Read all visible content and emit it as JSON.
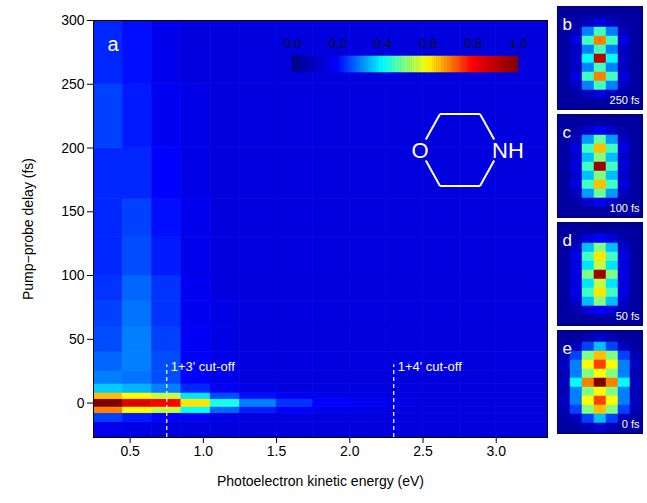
{
  "chart_data": {
    "type": "heatmap",
    "panel_label": "a",
    "xlabel": "Photoelectron kinetic energy (eV)",
    "ylabel": "Pump−probe delay (fs)",
    "xlim": [
      0.25,
      3.35
    ],
    "ylim": [
      -27,
      300
    ],
    "xticks": [
      0.5,
      {
        "value": 1,
        "label": "1.0"
      },
      1.5,
      {
        "value": 2,
        "label": "2.0"
      },
      2.5,
      {
        "value": 3,
        "label": "3.0"
      }
    ],
    "yticks": [
      0,
      50,
      100,
      150,
      200,
      250,
      300
    ],
    "x_edges": [
      0.25,
      0.45,
      0.65,
      0.85,
      1.05,
      1.25,
      1.5,
      1.75,
      2.0,
      2.25,
      2.5,
      2.75,
      3.0,
      3.35
    ],
    "y_edges": [
      -27,
      -15,
      -8,
      -3,
      3,
      8,
      15,
      25,
      40,
      60,
      80,
      100,
      130,
      160,
      200,
      250,
      300
    ],
    "cells": [
      [
        0.17,
        0.16,
        0.15,
        0.15,
        0.15,
        0.15,
        0.15,
        0.15,
        0.15,
        0.15,
        0.15,
        0.15,
        0.15
      ],
      [
        0.25,
        0.22,
        0.2,
        0.18,
        0.16,
        0.15,
        0.15,
        0.15,
        0.15,
        0.15,
        0.15,
        0.15,
        0.15
      ],
      [
        0.7,
        0.6,
        0.55,
        0.4,
        0.28,
        0.22,
        0.19,
        0.17,
        0.16,
        0.15,
        0.15,
        0.15,
        0.15
      ],
      [
        1.0,
        0.85,
        0.8,
        0.62,
        0.42,
        0.3,
        0.24,
        0.2,
        0.18,
        0.16,
        0.15,
        0.15,
        0.15
      ],
      [
        0.65,
        0.6,
        0.55,
        0.38,
        0.26,
        0.21,
        0.18,
        0.17,
        0.16,
        0.15,
        0.15,
        0.15,
        0.15
      ],
      [
        0.36,
        0.34,
        0.3,
        0.23,
        0.18,
        0.16,
        0.15,
        0.15,
        0.15,
        0.15,
        0.15,
        0.15,
        0.15
      ],
      [
        0.3,
        0.29,
        0.26,
        0.2,
        0.17,
        0.15,
        0.15,
        0.15,
        0.15,
        0.15,
        0.15,
        0.15,
        0.15
      ],
      [
        0.28,
        0.3,
        0.26,
        0.2,
        0.16,
        0.15,
        0.15,
        0.15,
        0.15,
        0.15,
        0.15,
        0.15,
        0.15
      ],
      [
        0.26,
        0.3,
        0.25,
        0.19,
        0.16,
        0.15,
        0.15,
        0.15,
        0.15,
        0.15,
        0.15,
        0.15,
        0.15
      ],
      [
        0.25,
        0.29,
        0.24,
        0.18,
        0.16,
        0.15,
        0.15,
        0.15,
        0.15,
        0.15,
        0.15,
        0.15,
        0.15
      ],
      [
        0.24,
        0.28,
        0.24,
        0.18,
        0.15,
        0.15,
        0.15,
        0.15,
        0.15,
        0.15,
        0.15,
        0.15,
        0.15
      ],
      [
        0.23,
        0.26,
        0.22,
        0.17,
        0.15,
        0.15,
        0.15,
        0.15,
        0.15,
        0.15,
        0.15,
        0.15,
        0.15
      ],
      [
        0.23,
        0.25,
        0.21,
        0.17,
        0.15,
        0.15,
        0.15,
        0.15,
        0.15,
        0.15,
        0.15,
        0.15,
        0.15
      ],
      [
        0.23,
        0.23,
        0.2,
        0.16,
        0.15,
        0.15,
        0.15,
        0.15,
        0.15,
        0.15,
        0.15,
        0.15,
        0.15
      ],
      [
        0.25,
        0.22,
        0.18,
        0.16,
        0.15,
        0.15,
        0.15,
        0.15,
        0.15,
        0.15,
        0.15,
        0.15,
        0.15
      ],
      [
        0.23,
        0.21,
        0.17,
        0.15,
        0.15,
        0.15,
        0.15,
        0.15,
        0.15,
        0.15,
        0.15,
        0.15,
        0.15
      ]
    ],
    "colorbar": {
      "range": [
        0,
        1
      ],
      "ticks": [
        {
          "value": 0,
          "label": "0.0"
        },
        0.2,
        0.4,
        0.6,
        0.8,
        {
          "value": 1,
          "label": "1.0"
        }
      ]
    },
    "annotations": [
      {
        "label": "1+3' cut-off",
        "energy": 0.75,
        "y_top": 30
      },
      {
        "label": "1+4' cut-off",
        "energy": 2.3,
        "y_top": 30
      }
    ],
    "structure_labels": [
      "O",
      "NH"
    ],
    "images": [
      {
        "panel_label": "b",
        "label": "250 fs",
        "cells": [
          [
            0.05,
            0.05,
            0.05,
            0.05,
            0.05,
            0.05,
            0.05
          ],
          [
            0.05,
            0.06,
            0.1,
            0.15,
            0.1,
            0.06,
            0.05
          ],
          [
            0.05,
            0.1,
            0.3,
            0.45,
            0.3,
            0.1,
            0.05
          ],
          [
            0.05,
            0.15,
            0.45,
            0.7,
            0.45,
            0.15,
            0.05
          ],
          [
            0.05,
            0.1,
            0.3,
            0.45,
            0.3,
            0.1,
            0.05
          ],
          [
            0.05,
            0.12,
            0.4,
            0.9,
            0.4,
            0.12,
            0.05
          ],
          [
            0.05,
            0.1,
            0.3,
            0.45,
            0.3,
            0.1,
            0.05
          ],
          [
            0.05,
            0.15,
            0.45,
            0.7,
            0.45,
            0.15,
            0.05
          ],
          [
            0.05,
            0.1,
            0.3,
            0.45,
            0.3,
            0.1,
            0.05
          ],
          [
            0.05,
            0.06,
            0.1,
            0.15,
            0.1,
            0.06,
            0.05
          ],
          [
            0.05,
            0.05,
            0.05,
            0.05,
            0.05,
            0.05,
            0.05
          ]
        ]
      },
      {
        "panel_label": "c",
        "label": "100 fs",
        "cells": [
          [
            0.05,
            0.05,
            0.05,
            0.05,
            0.05,
            0.05,
            0.05
          ],
          [
            0.05,
            0.06,
            0.12,
            0.18,
            0.12,
            0.06,
            0.05
          ],
          [
            0.05,
            0.1,
            0.32,
            0.48,
            0.32,
            0.1,
            0.05
          ],
          [
            0.05,
            0.15,
            0.45,
            0.65,
            0.45,
            0.15,
            0.05
          ],
          [
            0.05,
            0.12,
            0.35,
            0.5,
            0.35,
            0.12,
            0.05
          ],
          [
            0.05,
            0.14,
            0.45,
            0.95,
            0.45,
            0.14,
            0.05
          ],
          [
            0.05,
            0.12,
            0.35,
            0.5,
            0.35,
            0.12,
            0.05
          ],
          [
            0.05,
            0.15,
            0.45,
            0.65,
            0.45,
            0.15,
            0.05
          ],
          [
            0.05,
            0.1,
            0.32,
            0.48,
            0.32,
            0.1,
            0.05
          ],
          [
            0.05,
            0.06,
            0.12,
            0.18,
            0.12,
            0.06,
            0.05
          ],
          [
            0.05,
            0.05,
            0.05,
            0.05,
            0.05,
            0.05,
            0.05
          ]
        ]
      },
      {
        "panel_label": "d",
        "label": "50 fs",
        "cells": [
          [
            0.05,
            0.05,
            0.05,
            0.05,
            0.05,
            0.05,
            0.05
          ],
          [
            0.05,
            0.07,
            0.14,
            0.2,
            0.14,
            0.07,
            0.05
          ],
          [
            0.05,
            0.12,
            0.35,
            0.5,
            0.35,
            0.12,
            0.05
          ],
          [
            0.05,
            0.16,
            0.45,
            0.62,
            0.45,
            0.16,
            0.05
          ],
          [
            0.05,
            0.14,
            0.38,
            0.55,
            0.38,
            0.14,
            0.05
          ],
          [
            0.05,
            0.16,
            0.5,
            0.95,
            0.5,
            0.16,
            0.05
          ],
          [
            0.05,
            0.14,
            0.38,
            0.55,
            0.38,
            0.14,
            0.05
          ],
          [
            0.05,
            0.16,
            0.45,
            0.62,
            0.45,
            0.16,
            0.05
          ],
          [
            0.05,
            0.12,
            0.35,
            0.5,
            0.35,
            0.12,
            0.05
          ],
          [
            0.05,
            0.07,
            0.14,
            0.2,
            0.14,
            0.07,
            0.05
          ],
          [
            0.05,
            0.05,
            0.05,
            0.05,
            0.05,
            0.05,
            0.05
          ]
        ]
      },
      {
        "panel_label": "e",
        "label": "0 fs",
        "cells": [
          [
            0.05,
            0.05,
            0.08,
            0.12,
            0.08,
            0.05,
            0.05
          ],
          [
            0.05,
            0.1,
            0.25,
            0.35,
            0.25,
            0.1,
            0.05
          ],
          [
            0.08,
            0.25,
            0.5,
            0.65,
            0.5,
            0.25,
            0.08
          ],
          [
            0.1,
            0.3,
            0.6,
            0.75,
            0.6,
            0.3,
            0.1
          ],
          [
            0.08,
            0.3,
            0.5,
            0.6,
            0.5,
            0.3,
            0.08
          ],
          [
            0.1,
            0.4,
            0.7,
            1.0,
            0.7,
            0.4,
            0.1
          ],
          [
            0.08,
            0.3,
            0.5,
            0.6,
            0.5,
            0.3,
            0.08
          ],
          [
            0.1,
            0.3,
            0.6,
            0.75,
            0.6,
            0.3,
            0.1
          ],
          [
            0.08,
            0.25,
            0.5,
            0.65,
            0.5,
            0.25,
            0.08
          ],
          [
            0.05,
            0.1,
            0.25,
            0.35,
            0.25,
            0.1,
            0.05
          ],
          [
            0.05,
            0.05,
            0.08,
            0.12,
            0.08,
            0.05,
            0.05
          ]
        ]
      }
    ]
  }
}
